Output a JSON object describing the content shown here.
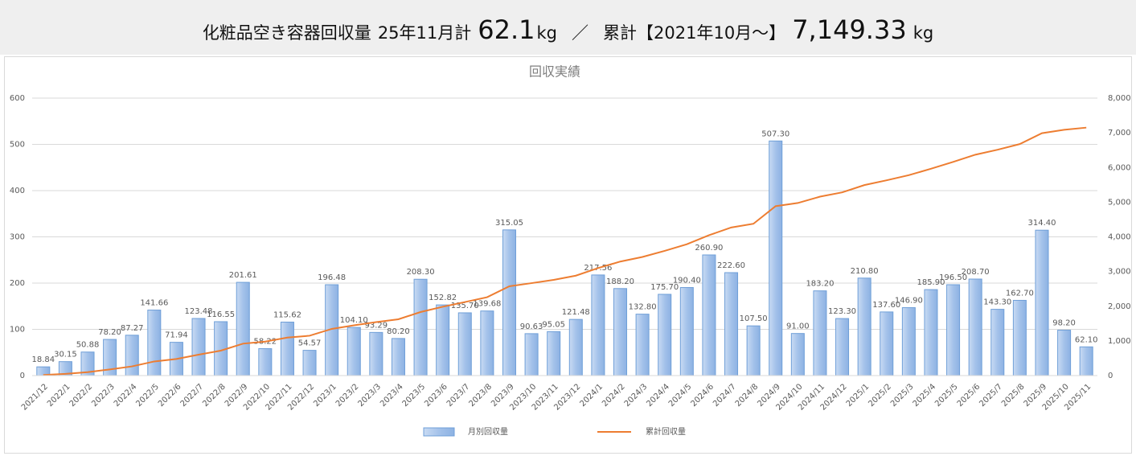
{
  "header": {
    "label": "化粧品空き容器回収量",
    "month_label": "25年11月計",
    "month_value": "62.1",
    "month_unit": "kg",
    "separator": "／",
    "total_label": "累計【2021年10月～】",
    "total_value": "7,149.33",
    "total_unit": "kg"
  },
  "chart_data": {
    "type": "bar",
    "title": "回収実績",
    "categories": [
      "2021/12",
      "2022/1",
      "2022/2",
      "2022/3",
      "2022/4",
      "2022/5",
      "2022/6",
      "2022/7",
      "2022/8",
      "2022/9",
      "2022/10",
      "2022/11",
      "2022/12",
      "2023/1",
      "2023/2",
      "2023/3",
      "2023/4",
      "2023/5",
      "2023/6",
      "2023/7",
      "2023/8",
      "2023/9",
      "2023/10",
      "2023/11",
      "2023/12",
      "2024/1",
      "2024/2",
      "2024/3",
      "2024/4",
      "2024/5",
      "2024/6",
      "2024/7",
      "2024/8",
      "2024/9",
      "2024/10",
      "2024/11",
      "2024/12",
      "2025/1",
      "2025/2",
      "2025/3",
      "2025/4",
      "2025/5",
      "2025/6",
      "2025/7",
      "2025/8",
      "2025/9",
      "2025/10",
      "2025/11"
    ],
    "series": [
      {
        "name": "月別回収量",
        "type": "bar",
        "color": "#6f9fd8",
        "values": [
          18.84,
          30.15,
          50.88,
          78.2,
          87.27,
          141.66,
          71.94,
          123.48,
          116.55,
          201.61,
          58.22,
          115.62,
          54.57,
          196.48,
          104.1,
          93.29,
          80.2,
          208.3,
          152.82,
          135.7,
          139.68,
          315.05,
          90.63,
          95.05,
          121.48,
          217.56,
          188.2,
          132.8,
          175.7,
          190.4,
          260.9,
          222.6,
          107.5,
          507.3,
          91,
          183.2,
          123.3,
          210.8,
          137.6,
          146.9,
          185.9,
          196.5,
          208.7,
          143.3,
          162.7,
          314.4,
          98.2,
          62.1
        ],
        "value_labels": [
          "18.84",
          "30.15",
          "50.88",
          "78.20",
          "87.27",
          "141.66",
          "71.94",
          "123.48",
          "116.55",
          "201.61",
          "58.22",
          "115.62",
          "54.57",
          "196.48",
          "104.10",
          "93.29",
          "80.20",
          "208.30",
          "152.82",
          "135.70",
          "139.68",
          "315.05",
          "90.63",
          "95.05",
          "121.48",
          "217.56",
          "188.20",
          "132.80",
          "175.70",
          "190.40",
          "260.90",
          "222.60",
          "107.50",
          "507.30",
          "91.00",
          "183.20",
          "123.30",
          "210.80",
          "137.60",
          "146.90",
          "185.90",
          "196.50",
          "208.70",
          "143.30",
          "162.70",
          "314.40",
          "98.20",
          "62.10"
        ]
      },
      {
        "name": "累計回収量",
        "type": "line",
        "axis": "y2",
        "color": "#ed7d31",
        "values": [
          18.84,
          48.99,
          99.87,
          178.07,
          265.34,
          407,
          478.94,
          602.42,
          718.97,
          920.58,
          978.8,
          1094.42,
          1148.99,
          1345.47,
          1449.57,
          1542.86,
          1623.06,
          1831.36,
          1984.18,
          2119.88,
          2259.56,
          2574.61,
          2665.24,
          2760.29,
          2881.77,
          3099.33,
          3287.53,
          3420.33,
          3596.03,
          3786.43,
          4047.33,
          4269.93,
          4377.43,
          4884.73,
          4975.73,
          5158.93,
          5282.23,
          5493.03,
          5630.63,
          5777.53,
          5963.43,
          6159.93,
          6368.63,
          6511.93,
          6674.63,
          6989.03,
          7087.23,
          7149.33
        ]
      }
    ],
    "ylim": [
      0,
      600
    ],
    "yticks": [
      0,
      100,
      200,
      300,
      400,
      500,
      600
    ],
    "y2lim": [
      0,
      8000
    ],
    "y2ticks": [
      0,
      {
        "value": 1000,
        "label": "1,000"
      },
      {
        "value": 2000,
        "label": "2,000"
      },
      {
        "value": 3000,
        "label": "3,000"
      },
      {
        "value": 4000,
        "label": "4,000"
      },
      {
        "value": 5000,
        "label": "5,000"
      },
      {
        "value": 6000,
        "label": "6,000"
      },
      {
        "value": 7000,
        "label": "7,000"
      },
      {
        "value": 8000,
        "label": "8,000"
      }
    ],
    "grid": true,
    "legend": "bottom"
  }
}
